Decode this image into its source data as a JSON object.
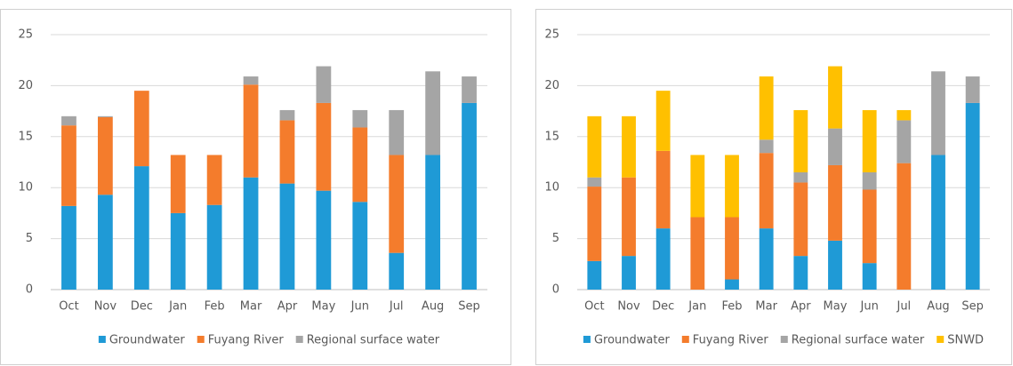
{
  "chart_data": [
    {
      "type": "stacked_bar",
      "categories": [
        "Oct",
        "Nov",
        "Dec",
        "Jan",
        "Feb",
        "Mar",
        "Apr",
        "May",
        "Jun",
        "Jul",
        "Aug",
        "Sep"
      ],
      "series": [
        {
          "name": "Groundwater",
          "color": "#1f9ad6",
          "values": [
            8.2,
            9.3,
            12.1,
            7.5,
            8.3,
            11.0,
            10.4,
            9.7,
            8.6,
            3.6,
            13.2,
            18.3
          ]
        },
        {
          "name": "Fuyang River",
          "color": "#f47c2c",
          "values": [
            7.9,
            7.6,
            7.4,
            5.7,
            4.9,
            9.1,
            6.2,
            8.6,
            7.3,
            9.6,
            0,
            0
          ]
        },
        {
          "name": "Regional surface water",
          "color": "#a5a5a5",
          "values": [
            0.9,
            0.1,
            0,
            0,
            0,
            0.8,
            1.0,
            3.6,
            1.7,
            4.4,
            8.2,
            2.6
          ]
        }
      ],
      "ylim": [
        0,
        25
      ],
      "yticks": [
        0,
        5,
        10,
        15,
        20,
        25
      ],
      "grid": true,
      "legend": "bottom"
    },
    {
      "type": "stacked_bar",
      "categories": [
        "Oct",
        "Nov",
        "Dec",
        "Jan",
        "Feb",
        "Mar",
        "Apr",
        "May",
        "Jun",
        "Jul",
        "Aug",
        "Sep"
      ],
      "series": [
        {
          "name": "Groundwater",
          "color": "#1f9ad6",
          "values": [
            2.8,
            3.3,
            6.0,
            0,
            1.0,
            6.0,
            3.3,
            4.8,
            2.6,
            0,
            13.2,
            18.3
          ]
        },
        {
          "name": "Fuyang River",
          "color": "#f47c2c",
          "values": [
            7.3,
            7.7,
            7.6,
            7.1,
            6.1,
            7.4,
            7.2,
            7.4,
            7.2,
            12.4,
            0,
            0
          ]
        },
        {
          "name": "Regional surface water",
          "color": "#a5a5a5",
          "values": [
            0.9,
            0,
            0,
            0,
            0,
            1.3,
            1.0,
            3.6,
            1.7,
            4.2,
            8.2,
            2.6
          ]
        },
        {
          "name": "SNWD",
          "color": "#ffc000",
          "values": [
            6.0,
            6.0,
            5.9,
            6.1,
            6.1,
            6.2,
            6.1,
            6.1,
            6.1,
            1.0,
            0,
            0
          ]
        }
      ],
      "ylim": [
        0,
        25
      ],
      "yticks": [
        0,
        5,
        10,
        15,
        20,
        25
      ],
      "grid": true,
      "legend": "bottom"
    }
  ]
}
